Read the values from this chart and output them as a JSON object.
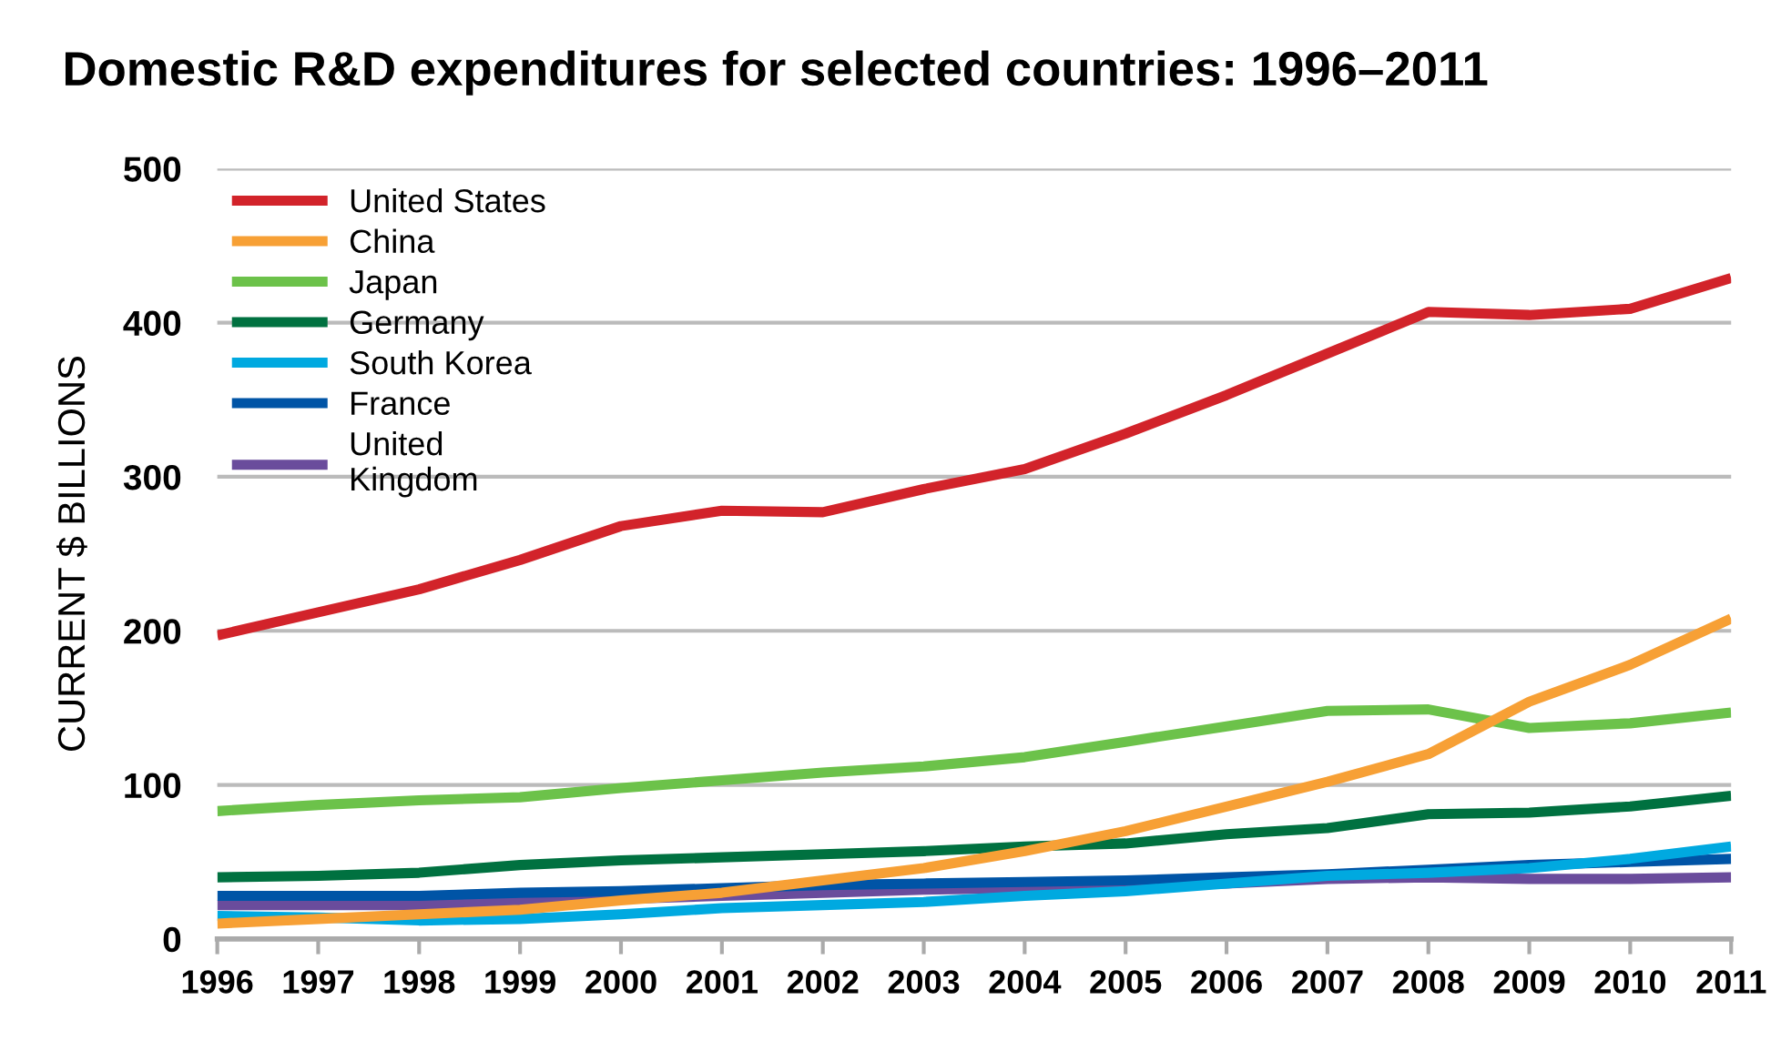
{
  "chart_data": {
    "type": "line",
    "title": "Domestic R&D expenditures for selected countries: 1996–2011",
    "ylabel": "CURRENT $ BILLIONS",
    "x": [
      1996,
      1997,
      1998,
      1999,
      2000,
      2001,
      2002,
      2003,
      2004,
      2005,
      2006,
      2007,
      2008,
      2009,
      2010,
      2011
    ],
    "xlim": [
      1996,
      2011
    ],
    "xticks": [
      1996,
      1997,
      1998,
      1999,
      2000,
      2001,
      2002,
      2003,
      2004,
      2005,
      2006,
      2007,
      2008,
      2009,
      2010,
      2011
    ],
    "ylim": [
      0,
      500
    ],
    "yticks": [
      0,
      100,
      200,
      300,
      400,
      500
    ],
    "grid": "y",
    "legend": "top left",
    "marker": "none",
    "series": [
      {
        "name": "United States",
        "color": "#d2232a",
        "values": [
          197,
          212,
          227,
          246,
          268,
          278,
          277,
          292,
          305,
          328,
          353,
          380,
          407,
          405,
          409,
          429
        ]
      },
      {
        "name": "China",
        "color": "#f7a035",
        "values": [
          10,
          13,
          16,
          19,
          25,
          30,
          38,
          46,
          57,
          70,
          86,
          102,
          120,
          154,
          178,
          208
        ]
      },
      {
        "name": "Japan",
        "color": "#6cc24a",
        "values": [
          83,
          87,
          90,
          92,
          98,
          103,
          108,
          112,
          118,
          128,
          138,
          148,
          149,
          137,
          140,
          147
        ]
      },
      {
        "name": "Germany",
        "color": "#007140",
        "values": [
          40,
          41,
          43,
          48,
          51,
          53,
          55,
          57,
          60,
          62,
          68,
          72,
          81,
          82,
          86,
          93
        ]
      },
      {
        "name": "South Korea",
        "color": "#00a9e0",
        "values": [
          15,
          14,
          12,
          13,
          16,
          20,
          22,
          24,
          28,
          31,
          36,
          41,
          43,
          46,
          52,
          60
        ]
      },
      {
        "name": "France",
        "color": "#0054a6",
        "values": [
          28,
          28,
          28,
          30,
          31,
          33,
          35,
          36,
          37,
          38,
          40,
          42,
          45,
          48,
          50,
          52
        ]
      },
      {
        "name": "United\nKingdom",
        "color": "#6a4c9c",
        "values": [
          22,
          22,
          22,
          24,
          26,
          28,
          30,
          32,
          33,
          34,
          36,
          39,
          40,
          39,
          39,
          40
        ]
      }
    ]
  }
}
